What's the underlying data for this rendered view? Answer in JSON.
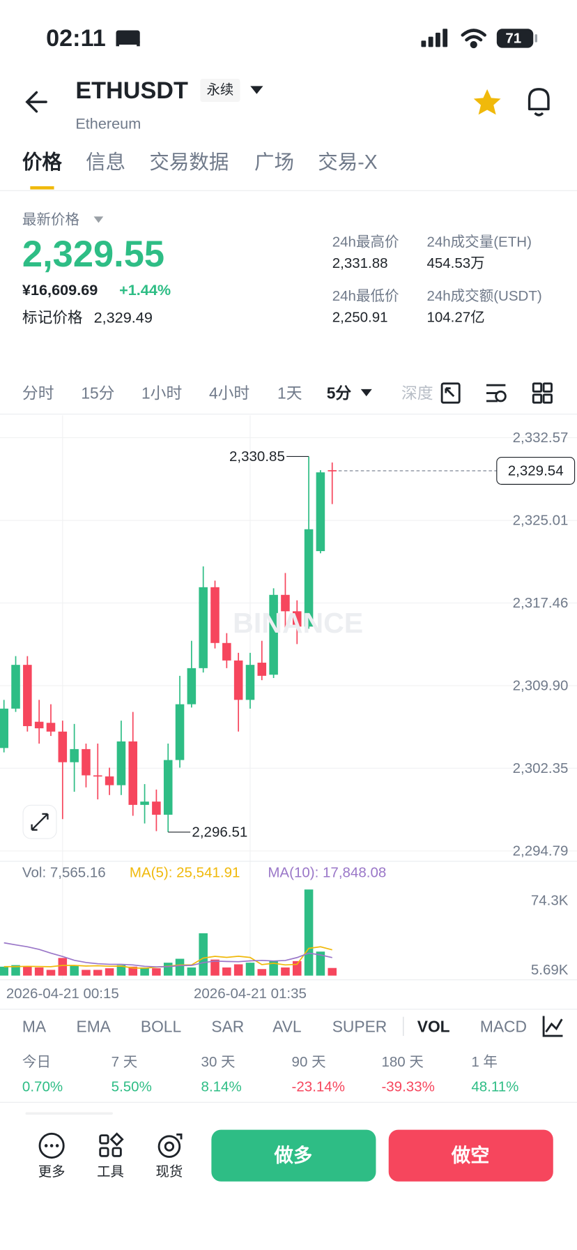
{
  "status_bar": {
    "time": "02:11",
    "battery": "71"
  },
  "header": {
    "symbol": "ETHUSDT",
    "contract": "永续",
    "name": "Ethereum"
  },
  "tabs": [
    "价格",
    "信息",
    "交易数据",
    "广场",
    "交易-X"
  ],
  "price": {
    "label": "最新价格",
    "last": "2,329.55",
    "cny": "¥16,609.69",
    "change": "+1.44%",
    "mark_label": "标记价格",
    "mark": "2,329.49"
  },
  "stats": [
    {
      "label": "24h最高价",
      "value": "2,331.88"
    },
    {
      "label": "24h成交量(ETH)",
      "value": "454.53万"
    },
    {
      "label": "24h最低价",
      "value": "2,250.91"
    },
    {
      "label": "24h成交额(USDT)",
      "value": "104.27亿"
    }
  ],
  "intervals": [
    "分时",
    "15分",
    "1小时",
    "4小时",
    "1天",
    "5分",
    "深度"
  ],
  "chart_data": {
    "type": "candlestick",
    "watermark": "BINANCE",
    "colors": {
      "up": "#2ebd85",
      "down": "#f6465d"
    },
    "categories": [
      null,
      null,
      null,
      null,
      null,
      "2026-04-21 00:15",
      null,
      null,
      null,
      null,
      null,
      null,
      null,
      null,
      null,
      null,
      null,
      null,
      null,
      null,
      null,
      "2026-04-21 01:35",
      null,
      null,
      null,
      null,
      null,
      null,
      null
    ],
    "open": [
      2304.2,
      2307.8,
      2311.8,
      2306.6,
      2306.5,
      2305.7,
      2302.9,
      2304.1,
      2301.7,
      2301.6,
      2300.8,
      2304.8,
      2299.0,
      2299.3,
      2298.1,
      2303.1,
      2308.2,
      2311.5,
      2318.9,
      2313.8,
      2312.2,
      2308.6,
      2312.0,
      2310.9,
      2318.2,
      2316.7,
      2315.3,
      2322.2,
      2329.6
    ],
    "close": [
      2307.8,
      2311.8,
      2306.2,
      2306.0,
      2305.7,
      2302.9,
      2304.1,
      2301.7,
      2301.6,
      2300.8,
      2304.8,
      2299.0,
      2299.3,
      2298.1,
      2303.1,
      2308.2,
      2311.5,
      2318.9,
      2313.8,
      2312.2,
      2308.6,
      2311.8,
      2310.8,
      2318.2,
      2316.7,
      2315.3,
      2324.2,
      2329.4,
      2329.54
    ],
    "high": [
      2308.6,
      2312.6,
      2312.6,
      2308.6,
      2308.2,
      2306.7,
      2306.4,
      2304.6,
      2304.6,
      2302.4,
      2306.7,
      2307.5,
      2300.9,
      2300.4,
      2304.6,
      2310.8,
      2314.0,
      2320.8,
      2319.5,
      2314.7,
      2312.9,
      2312.9,
      2314.0,
      2318.8,
      2320.2,
      2317.7,
      2330.85,
      2329.6,
      2330.3
    ],
    "low": [
      2303.8,
      2307.5,
      2305.7,
      2304.6,
      2305.3,
      2297.7,
      2300.2,
      2300.6,
      2299.5,
      2299.9,
      2299.9,
      2298.0,
      2297.3,
      2296.6,
      2296.51,
      2302.4,
      2307.9,
      2311.1,
      2313.3,
      2311.5,
      2305.7,
      2307.8,
      2310.4,
      2310.6,
      2315.1,
      2313.7,
      2315.1,
      2322.0,
      2326.5
    ],
    "ylim": [
      2293.88,
      2334.61
    ],
    "yticks": [
      {
        "value": 2332.57,
        "label": "2,332.57"
      },
      {
        "value": 2325.01,
        "label": "2,325.01"
      },
      {
        "value": 2317.46,
        "label": "2,317.46"
      },
      {
        "value": 2309.9,
        "label": "2,309.90"
      },
      {
        "value": 2302.35,
        "label": "2,302.35"
      },
      {
        "value": 2294.79,
        "label": "2,294.79"
      }
    ],
    "annotations": [
      {
        "value": 2330.85,
        "label": "2,330.85"
      },
      {
        "value": 2296.51,
        "label": "2,296.51"
      }
    ],
    "last_price": {
      "value": 2329.54,
      "label": "2,329.54"
    },
    "volume": {
      "legend": "Vol: 7,565.16",
      "values": [
        8860,
        10400,
        8860,
        8070,
        5700,
        17500,
        10400,
        5700,
        5700,
        7280,
        10400,
        8860,
        8070,
        7280,
        12800,
        16700,
        8070,
        42000,
        15900,
        8070,
        11200,
        12800,
        6490,
        14400,
        8070,
        14400,
        85400,
        23800,
        7565.16
      ],
      "ylim": [
        -2989,
        111416
      ],
      "yticks": [
        {
          "value": 74300,
          "label": "74.3K"
        },
        {
          "value": 5690,
          "label": "5.69K"
        }
      ],
      "series": [
        {
          "name": "MA(5): 25,541.91",
          "color": "#f0b90b",
          "values": [
            8900,
            8900,
            9200,
            9000,
            8800,
            10100,
            10100,
            9500,
            9800,
            9300,
            9400,
            7600,
            7300,
            8400,
            9300,
            10600,
            10600,
            17400,
            19100,
            18100,
            19200,
            18000,
            10900,
            12300,
            10600,
            11200,
            27000,
            28600,
            25541.91
          ]
        },
        {
          "name": "MA(10): 17,848.08",
          "color": "#9a77c8",
          "values": [
            32500,
            30500,
            28600,
            26000,
            22300,
            19000,
            15200,
            13000,
            11800,
            11200,
            11200,
            10600,
            9200,
            8700,
            8900,
            9900,
            10100,
            12900,
            14400,
            14000,
            13800,
            14600,
            15100,
            14500,
            15000,
            17900,
            22300,
            20500,
            17848.08
          ]
        }
      ]
    }
  },
  "indicators": [
    "MA",
    "EMA",
    "BOLL",
    "SAR",
    "AVL",
    "SUPER",
    "VOL",
    "MACD"
  ],
  "performance": [
    {
      "label": "今日",
      "value": "0.70%"
    },
    {
      "label": "7 天",
      "value": "5.50%"
    },
    {
      "label": "30 天",
      "value": "8.14%"
    },
    {
      "label": "90 天",
      "value": "-23.14%"
    },
    {
      "label": "180 天",
      "value": "-39.33%"
    },
    {
      "label": "1 年",
      "value": "48.11%"
    }
  ],
  "actions": [
    "更多",
    "工具",
    "现货"
  ],
  "buttons": {
    "long": "做多",
    "short": "做空"
  }
}
